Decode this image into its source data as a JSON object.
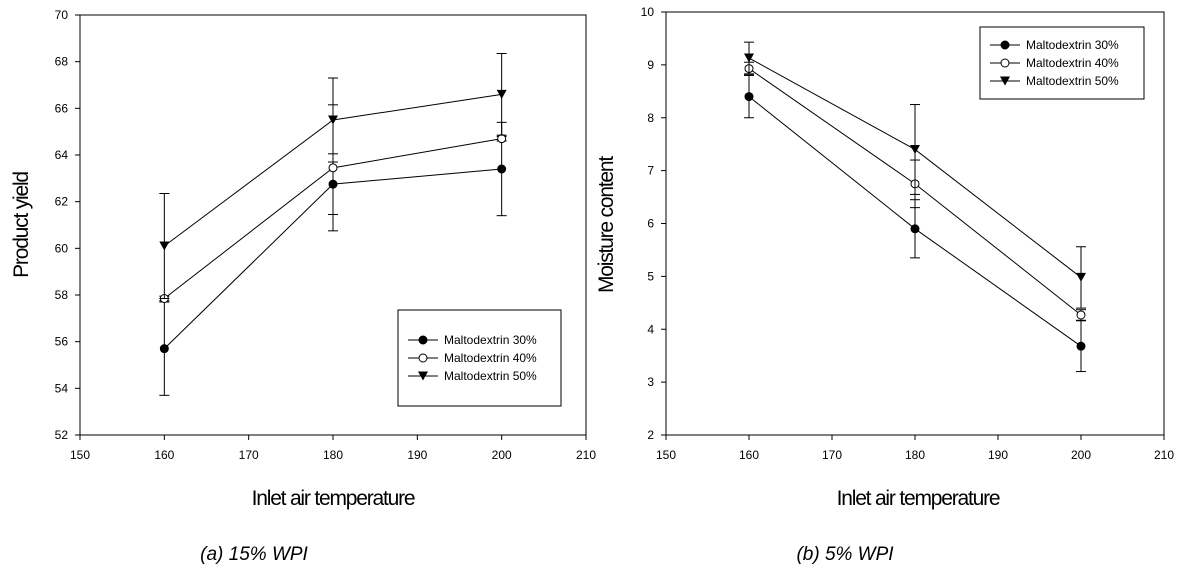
{
  "chart_data": [
    {
      "type": "line",
      "title": "",
      "caption": "(a) 15% WPI",
      "xlabel": "Inlet air temperature",
      "ylabel": "Product yield",
      "xlim": [
        150,
        210
      ],
      "ylim": [
        52,
        70
      ],
      "xticks": [
        150,
        160,
        170,
        180,
        190,
        200,
        210
      ],
      "yticks": [
        52,
        54,
        56,
        58,
        60,
        62,
        64,
        66,
        68,
        70
      ],
      "grid": false,
      "legend_position": "bottom-right",
      "x": [
        160,
        180,
        200
      ],
      "series": [
        {
          "name": "Maltodextrin 30%",
          "marker": "filled-circle",
          "values": [
            55.7,
            62.75,
            63.4
          ],
          "errors": [
            2.0,
            1.3,
            2.0
          ]
        },
        {
          "name": "Maltodextrin 40%",
          "marker": "open-circle",
          "values": [
            57.85,
            63.45,
            64.7
          ],
          "errors": [
            0.1,
            2.7,
            0.1
          ]
        },
        {
          "name": "Maltodextrin 50%",
          "marker": "filled-triangle-down",
          "values": [
            60.1,
            65.5,
            66.6
          ],
          "errors": [
            2.25,
            1.8,
            1.75
          ]
        }
      ]
    },
    {
      "type": "line",
      "title": "",
      "caption": "(b) 5% WPI",
      "xlabel": "Inlet air temperature",
      "ylabel": "Moisture content",
      "xlim": [
        150,
        210
      ],
      "ylim": [
        2,
        10
      ],
      "xticks": [
        150,
        160,
        170,
        180,
        190,
        200,
        210
      ],
      "yticks": [
        2,
        3,
        4,
        5,
        6,
        7,
        8,
        9,
        10
      ],
      "grid": false,
      "legend_position": "top-right",
      "x": [
        160,
        180,
        200
      ],
      "series": [
        {
          "name": "Maltodextrin 30%",
          "marker": "filled-circle",
          "values": [
            8.4,
            5.9,
            3.68
          ],
          "errors": [
            0.4,
            0.55,
            0.48
          ]
        },
        {
          "name": "Maltodextrin 40%",
          "marker": "open-circle",
          "values": [
            8.93,
            6.75,
            4.27
          ],
          "errors": [
            0.12,
            0.45,
            0.1
          ]
        },
        {
          "name": "Maltodextrin 50%",
          "marker": "filled-triangle-down",
          "values": [
            9.13,
            7.4,
            4.98
          ],
          "errors": [
            0.3,
            0.85,
            0.58
          ]
        }
      ]
    }
  ]
}
